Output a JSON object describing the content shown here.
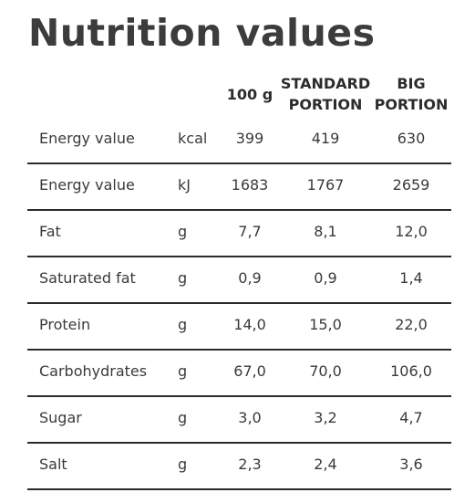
{
  "title": "Nutrition values",
  "columns": {
    "per100g": "100 g",
    "standard_line1": "STANDARD",
    "standard_line2": "PORTION",
    "big_line1": "BIG",
    "big_line2": "PORTION"
  },
  "rows": [
    {
      "label": "Energy value",
      "unit": "kcal",
      "v100": "399",
      "vstd": "419",
      "vbig": "630"
    },
    {
      "label": "Energy value",
      "unit": "kJ",
      "v100": "1683",
      "vstd": "1767",
      "vbig": "2659"
    },
    {
      "label": "Fat",
      "unit": "g",
      "v100": "7,7",
      "vstd": "8,1",
      "vbig": "12,0"
    },
    {
      "label": "Saturated fat",
      "unit": "g",
      "v100": "0,9",
      "vstd": "0,9",
      "vbig": "1,4"
    },
    {
      "label": "Protein",
      "unit": "g",
      "v100": "14,0",
      "vstd": "15,0",
      "vbig": "22,0"
    },
    {
      "label": "Carbohydrates",
      "unit": "g",
      "v100": "67,0",
      "vstd": "70,0",
      "vbig": "106,0"
    },
    {
      "label": "Sugar",
      "unit": "g",
      "v100": "3,0",
      "vstd": "3,2",
      "vbig": "4,7"
    },
    {
      "label": "Salt",
      "unit": "g",
      "v100": "2,3",
      "vstd": "2,4",
      "vbig": "3,6"
    }
  ]
}
